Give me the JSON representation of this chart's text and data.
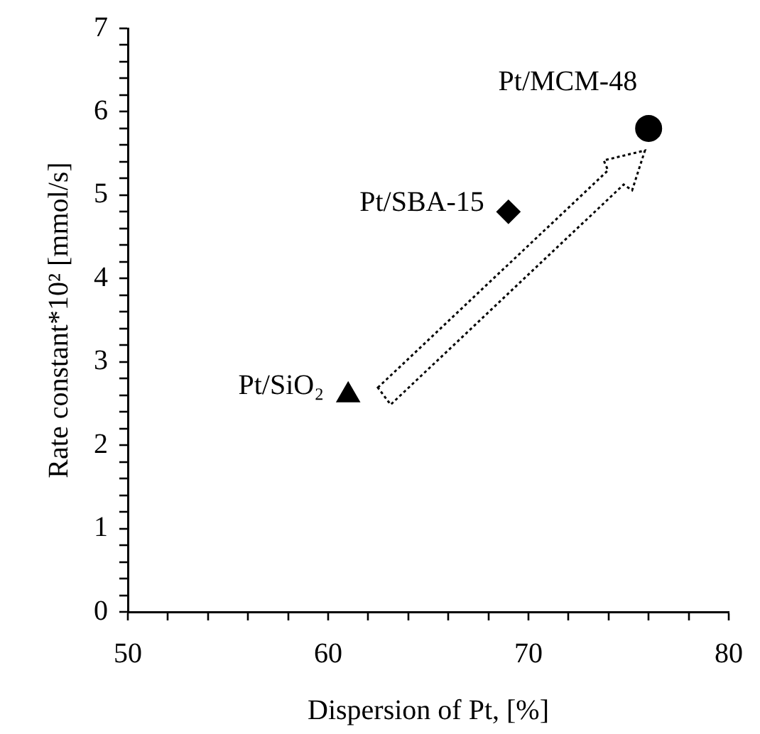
{
  "chart_data": {
    "type": "scatter",
    "xlabel": "Dispersion of Pt, [%]",
    "ylabel": "Rate constant*10² [mmol/s]",
    "xlim": [
      50,
      80
    ],
    "ylim": [
      0,
      7
    ],
    "xticks": [
      50,
      {
        "value": 52,
        "label": null
      },
      {
        "value": 54,
        "label": null
      },
      {
        "value": 56,
        "label": null
      },
      {
        "value": 58,
        "label": null
      },
      60,
      {
        "value": 62,
        "label": null
      },
      {
        "value": 64,
        "label": null
      },
      {
        "value": 66,
        "label": null
      },
      {
        "value": 68,
        "label": null
      },
      70,
      {
        "value": 72,
        "label": null
      },
      {
        "value": 74,
        "label": null
      },
      {
        "value": 76,
        "label": null
      },
      {
        "value": 78,
        "label": null
      },
      80
    ],
    "yticks": [
      0,
      {
        "value": 0.2,
        "label": null
      },
      {
        "value": 0.4,
        "label": null
      },
      {
        "value": 0.6,
        "label": null
      },
      {
        "value": 0.8,
        "label": null
      },
      1,
      {
        "value": 1.2,
        "label": null
      },
      {
        "value": 1.4,
        "label": null
      },
      {
        "value": 1.6,
        "label": null
      },
      {
        "value": 1.8,
        "label": null
      },
      2,
      {
        "value": 2.2,
        "label": null
      },
      {
        "value": 2.4,
        "label": null
      },
      {
        "value": 2.6,
        "label": null
      },
      {
        "value": 2.8,
        "label": null
      },
      3,
      {
        "value": 3.2,
        "label": null
      },
      {
        "value": 3.4,
        "label": null
      },
      {
        "value": 3.6,
        "label": null
      },
      {
        "value": 3.8,
        "label": null
      },
      4,
      {
        "value": 4.2,
        "label": null
      },
      {
        "value": 4.4,
        "label": null
      },
      {
        "value": 4.6,
        "label": null
      },
      {
        "value": 4.8,
        "label": null
      },
      5,
      {
        "value": 5.2,
        "label": null
      },
      {
        "value": 5.4,
        "label": null
      },
      {
        "value": 5.6,
        "label": null
      },
      {
        "value": 5.8,
        "label": null
      },
      6,
      {
        "value": 6.2,
        "label": null
      },
      {
        "value": 6.4,
        "label": null
      },
      {
        "value": 6.6,
        "label": null
      },
      {
        "value": 6.8,
        "label": null
      },
      7
    ],
    "grid": false,
    "legend": false,
    "series": [
      {
        "name": "Pt/SiO₂",
        "color": "#000000",
        "marker": "triangle",
        "x": [
          61
        ],
        "values": [
          2.6
        ]
      },
      {
        "name": "Pt/SBA-15",
        "color": "#000000",
        "marker": "diamond",
        "x": [
          69
        ],
        "values": [
          4.8
        ]
      },
      {
        "name": "Pt/MCM-48",
        "color": "#000000",
        "marker": "circle",
        "x": [
          76
        ],
        "values": [
          5.8
        ]
      }
    ]
  }
}
